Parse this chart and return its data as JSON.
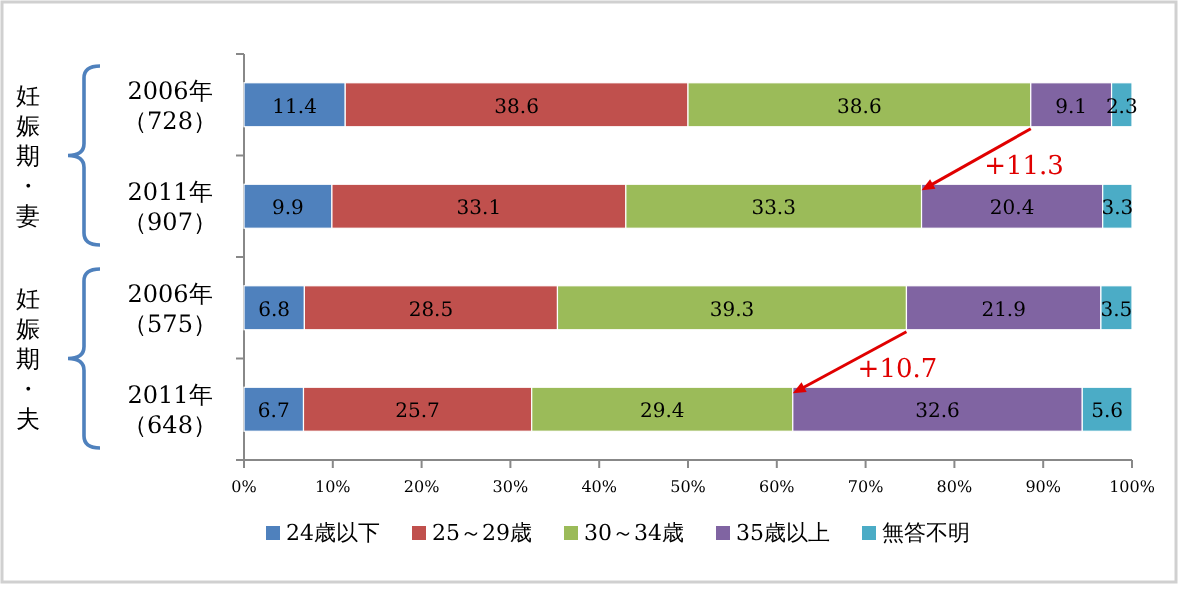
{
  "chart_data": {
    "type": "bar",
    "orientation": "horizontal",
    "stacked": true,
    "data_labels": true,
    "legend": "bottom",
    "categories": [
      "2006年（728）",
      "2011年（907）",
      "2006年（575）",
      "2011年（648）"
    ],
    "series": [
      {
        "name": "24歳以下",
        "color": "#4f81bd",
        "values": [
          11.4,
          9.9,
          6.8,
          6.7
        ]
      },
      {
        "name": "25～29歳",
        "color": "#c0504d",
        "values": [
          38.6,
          33.1,
          28.5,
          25.7
        ]
      },
      {
        "name": "30～34歳",
        "color": "#9bbb59",
        "values": [
          38.6,
          33.3,
          39.3,
          29.4
        ]
      },
      {
        "name": "35歳以上",
        "color": "#8064a2",
        "values": [
          9.1,
          20.4,
          21.9,
          32.6
        ]
      },
      {
        "name": "無答不明",
        "color": "#4bacc6",
        "values": [
          2.3,
          3.3,
          3.5,
          5.6
        ]
      }
    ],
    "xlim": [
      0,
      100
    ],
    "xticks": [
      {
        "value": 0,
        "label": "0%"
      },
      {
        "value": 10,
        "label": "10%"
      },
      {
        "value": 20,
        "label": "20%"
      },
      {
        "value": 30,
        "label": "30%"
      },
      {
        "value": 40,
        "label": "40%"
      },
      {
        "value": 50,
        "label": "50%"
      },
      {
        "value": 60,
        "label": "60%"
      },
      {
        "value": 70,
        "label": "70%"
      },
      {
        "value": 80,
        "label": "80%"
      },
      {
        "value": 90,
        "label": "90%"
      },
      {
        "value": 100,
        "label": "100%"
      }
    ],
    "annotations": [
      "妊娠期・妻",
      {
        "text": "+11.3",
        "x": 76.3,
        "y": "2011年（907）"
      },
      "妊娠期・夫",
      {
        "text": "+10.7",
        "x": 61.8,
        "y": "2011年（648）"
      }
    ]
  }
}
